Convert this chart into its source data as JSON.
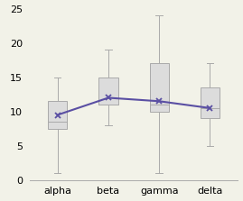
{
  "categories": [
    "alpha",
    "beta",
    "gamma",
    "delta"
  ],
  "boxes": [
    {
      "q1": 7.5,
      "median": 8.5,
      "q3": 11.5,
      "whisker_low": 1.0,
      "whisker_high": 15.0,
      "mean": 9.5
    },
    {
      "q1": 11.0,
      "median": 11.0,
      "q3": 15.0,
      "whisker_low": 8.0,
      "whisker_high": 19.0,
      "mean": 12.0
    },
    {
      "q1": 10.0,
      "median": 11.0,
      "q3": 17.0,
      "whisker_low": 1.0,
      "whisker_high": 24.0,
      "mean": 11.5
    },
    {
      "q1": 9.0,
      "median": 10.5,
      "q3": 13.5,
      "whisker_low": 5.0,
      "whisker_high": 17.0,
      "mean": 10.5
    }
  ],
  "box_color": "#dcdcdc",
  "box_edge_color": "#aaaaaa",
  "median_color": "#aaaaaa",
  "whisker_color": "#aaaaaa",
  "mean_line_color": "#5a4fa3",
  "mean_marker_color": "#5a4fa3",
  "background_color": "#f2f2e8",
  "ylim": [
    0,
    25
  ],
  "yticks": [
    0,
    5,
    10,
    15,
    20,
    25
  ],
  "tick_fontsize": 8,
  "box_width": 0.38,
  "cap_ratio": 0.35
}
